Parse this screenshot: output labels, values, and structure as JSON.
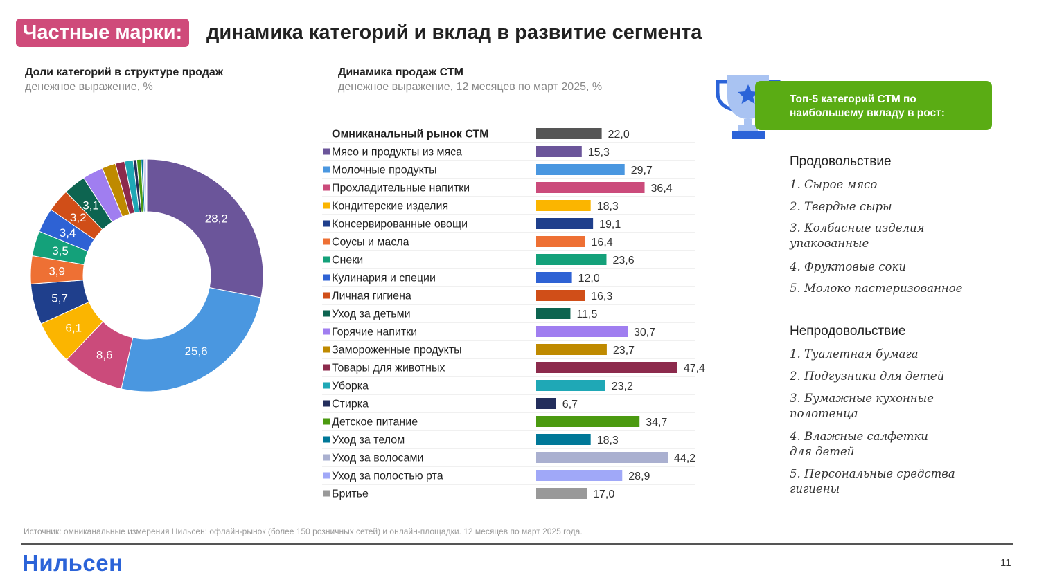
{
  "header": {
    "tag": "Частные марки:",
    "title": "динамика категорий и вклад в развитие сегмента"
  },
  "left_section": {
    "title": "Доли категорий в структуре продаж",
    "subtitle": "денежное выражение, %"
  },
  "mid_section": {
    "title": "Динамика продаж СТМ",
    "subtitle": "денежное выражение, 12 месяцев по март 2025, %"
  },
  "top5": {
    "banner": "Топ-5 категорий СТМ по наибольшему вкладу в рост:",
    "food_heading": "Продовольствие",
    "food": [
      "1.   Сырое мясо",
      "2.   Твердые сыры",
      "3. Колбасные изделия упакованные",
      "4. Фруктовые соки",
      "5. Молоко пастеризованное"
    ],
    "nonfood_heading": "Непродовольствие",
    "nonfood": [
      "1. Туалетная бумага",
      "2. Подгузники для детей",
      "3. Бумажные кухонные полотенца",
      "4. Влажные салфетки для детей",
      "5. Персональные средства гигиены"
    ]
  },
  "footer": {
    "source": "Источник: омниканальные измерения Нильсен: офлайн-рынок (более 150 розничных сетей) и онлайн-площадки. 12 месяцев по март 2025 года.",
    "logo": "Нильсен",
    "page": "11"
  },
  "chart_data": [
    {
      "type": "pie",
      "donut": true,
      "title": "Доли категорий в структуре продаж",
      "slices": [
        {
          "label": "Мясо и продукты из мяса",
          "value": 28.2,
          "display": "28,2",
          "color": "#6b559a"
        },
        {
          "label": "Молочные продукты",
          "value": 25.6,
          "display": "25,6",
          "color": "#4a97e0"
        },
        {
          "label": "Прохладительные напитки",
          "value": 8.6,
          "display": "8,6",
          "color": "#cb4b7b"
        },
        {
          "label": "Кондитерские изделия",
          "value": 6.1,
          "display": "6,1",
          "color": "#fbb500"
        },
        {
          "label": "Консервированные овощи",
          "value": 5.7,
          "display": "5,7",
          "color": "#1f3f8c"
        },
        {
          "label": "Соусы и масла",
          "value": 3.9,
          "display": "3,9",
          "color": "#ee7034"
        },
        {
          "label": "Снеки",
          "value": 3.5,
          "display": "3,5",
          "color": "#14a17a"
        },
        {
          "label": "Кулинария и специи",
          "value": 3.4,
          "display": "3,4",
          "color": "#2e62d4"
        },
        {
          "label": "Личная гигиена",
          "value": 3.2,
          "display": "3,2",
          "color": "#d04e18"
        },
        {
          "label": "Уход за детьми",
          "value": 3.1,
          "display": "3,1",
          "color": "#0d6450"
        },
        {
          "label": "Горячие напитки",
          "value": 2.9,
          "display": "",
          "color": "#a07ef0"
        },
        {
          "label": "Замороженные продукты",
          "value": 1.9,
          "display": "",
          "color": "#bf8a00"
        },
        {
          "label": "Товары для животных",
          "value": 1.3,
          "display": "",
          "color": "#8c2a4c"
        },
        {
          "label": "Уборка",
          "value": 1.2,
          "display": "",
          "color": "#1fa8b6"
        },
        {
          "label": "Стирка",
          "value": 0.5,
          "display": "",
          "color": "#232e5c"
        },
        {
          "label": "Детское питание",
          "value": 0.6,
          "display": "",
          "color": "#4b9a10"
        },
        {
          "label": "Уход за телом",
          "value": 0.3,
          "display": "",
          "color": "#007898"
        },
        {
          "label": "Уход за волосами",
          "value": 0.2,
          "display": "",
          "color": "#aab0d0"
        },
        {
          "label": "Уход за полостью рта",
          "value": 0.2,
          "display": "",
          "color": "#a0a8f8"
        },
        {
          "label": "Бритье",
          "value": 0.1,
          "display": "",
          "color": "#999999"
        }
      ]
    },
    {
      "type": "bar",
      "orientation": "horizontal",
      "title": "Динамика продаж СТМ",
      "xlim": [
        0,
        50
      ],
      "rows": [
        {
          "label": "Омниканальный рынок СТМ",
          "value": 22.0,
          "display": "22,0",
          "color": "#555555",
          "bold": true,
          "marker": false
        },
        {
          "label": "Мясо и продукты из мяса",
          "value": 15.3,
          "display": "15,3",
          "color": "#6b559a",
          "marker": true
        },
        {
          "label": "Молочные продукты",
          "value": 29.7,
          "display": "29,7",
          "color": "#4a97e0",
          "marker": true
        },
        {
          "label": "Прохладительные напитки",
          "value": 36.4,
          "display": "36,4",
          "color": "#cb4b7b",
          "marker": true
        },
        {
          "label": "Кондитерские изделия",
          "value": 18.3,
          "display": "18,3",
          "color": "#fbb500",
          "marker": true
        },
        {
          "label": "Консервированные овощи",
          "value": 19.1,
          "display": "19,1",
          "color": "#1f3f8c",
          "marker": true
        },
        {
          "label": "Соусы и масла",
          "value": 16.4,
          "display": "16,4",
          "color": "#ee7034",
          "marker": true
        },
        {
          "label": "Снеки",
          "value": 23.6,
          "display": "23,6",
          "color": "#14a17a",
          "marker": true
        },
        {
          "label": "Кулинария и специи",
          "value": 12.0,
          "display": "12,0",
          "color": "#2e62d4",
          "marker": true
        },
        {
          "label": "Личная гигиена",
          "value": 16.3,
          "display": "16,3",
          "color": "#d04e18",
          "marker": true
        },
        {
          "label": "Уход за детьми",
          "value": 11.5,
          "display": "11,5",
          "color": "#0d6450",
          "marker": true
        },
        {
          "label": "Горячие напитки",
          "value": 30.7,
          "display": "30,7",
          "color": "#a07ef0",
          "marker": true
        },
        {
          "label": "Замороженные продукты",
          "value": 23.7,
          "display": "23,7",
          "color": "#bf8a00",
          "marker": true
        },
        {
          "label": "Товары для животных",
          "value": 47.4,
          "display": "47,4",
          "color": "#8c2a4c",
          "marker": true
        },
        {
          "label": "Уборка",
          "value": 23.2,
          "display": "23,2",
          "color": "#1fa8b6",
          "marker": true
        },
        {
          "label": "Стирка",
          "value": 6.7,
          "display": "6,7",
          "color": "#232e5c",
          "marker": true
        },
        {
          "label": "Детское питание",
          "value": 34.7,
          "display": "34,7",
          "color": "#4b9a10",
          "marker": true
        },
        {
          "label": "Уход за телом",
          "value": 18.3,
          "display": "18,3",
          "color": "#007898",
          "marker": true
        },
        {
          "label": "Уход за волосами",
          "value": 44.2,
          "display": "44,2",
          "color": "#aab0d0",
          "marker": true
        },
        {
          "label": "Уход за полостью рта",
          "value": 28.9,
          "display": "28,9",
          "color": "#a0a8f8",
          "marker": true
        },
        {
          "label": "Бритье",
          "value": 17.0,
          "display": "17,0",
          "color": "#999999",
          "marker": true
        }
      ]
    }
  ]
}
